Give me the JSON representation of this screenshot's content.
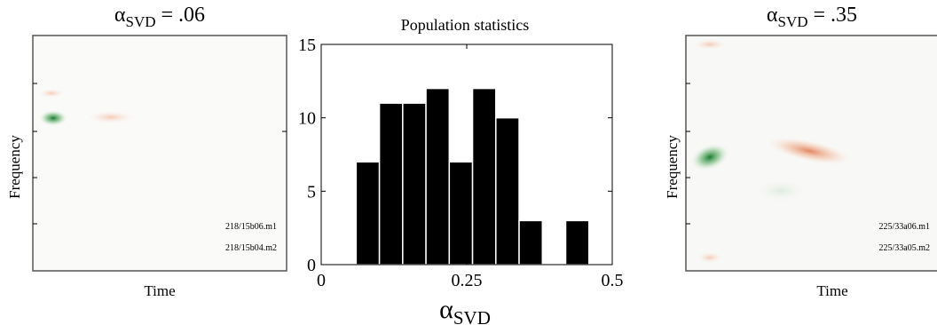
{
  "chart_data": {
    "type": "histogram",
    "title": "Population statistics",
    "xlabel_symbol": "α",
    "xlabel_subscript": "SVD",
    "bins": [
      0.06,
      0.1,
      0.14,
      0.18,
      0.22,
      0.26,
      0.3,
      0.34,
      0.38,
      0.42,
      0.46
    ],
    "values": [
      7,
      11,
      11,
      12,
      7,
      12,
      10,
      3,
      0,
      3
    ],
    "color": "#000000",
    "xlim": [
      0,
      0.5
    ],
    "xticks": [
      0,
      0.25,
      0.5
    ],
    "ylim": [
      0,
      15
    ],
    "yticks": [
      0,
      5,
      10,
      15
    ]
  },
  "panels": [
    {
      "title_symbol": "α",
      "title_subscript": "SVD",
      "title_value": " = .06",
      "ylabel": "Frequency",
      "xlabel": "Time",
      "labels": [
        "218/15b06.m1",
        "218/15b04.m2"
      ]
    },
    {
      "title_symbol": "α",
      "title_subscript": "SVD",
      "title_value": " = .35",
      "ylabel": "Frequency",
      "xlabel": "Time",
      "labels": [
        "225/33a06.m1",
        "225/33a05.m2"
      ]
    }
  ]
}
